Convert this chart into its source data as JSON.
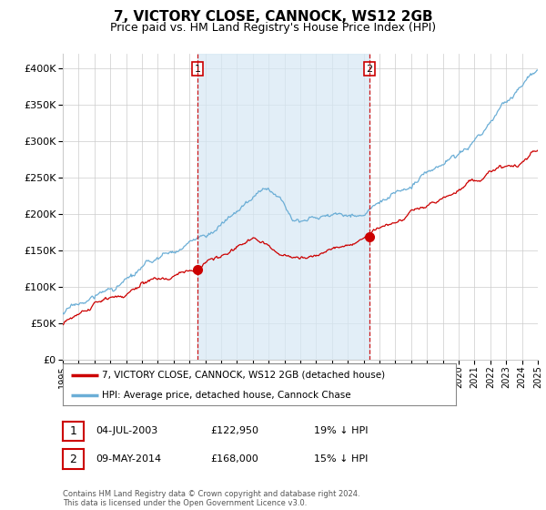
{
  "title": "7, VICTORY CLOSE, CANNOCK, WS12 2GB",
  "subtitle": "Price paid vs. HM Land Registry's House Price Index (HPI)",
  "title_fontsize": 11,
  "subtitle_fontsize": 9,
  "legend_line1": "7, VICTORY CLOSE, CANNOCK, WS12 2GB (detached house)",
  "legend_line2": "HPI: Average price, detached house, Cannock Chase",
  "sale1_date": "04-JUL-2003",
  "sale1_price": "£122,950",
  "sale1_note": "19% ↓ HPI",
  "sale2_date": "09-MAY-2014",
  "sale2_price": "£168,000",
  "sale2_note": "15% ↓ HPI",
  "footer": "Contains HM Land Registry data © Crown copyright and database right 2024.\nThis data is licensed under the Open Government Licence v3.0.",
  "hpi_color": "#6baed6",
  "price_color": "#cc0000",
  "vline_color": "#cc0000",
  "shade_color": "#d6e8f5",
  "grid_color": "#cccccc",
  "ylim": [
    0,
    420000
  ],
  "yticks": [
    0,
    50000,
    100000,
    150000,
    200000,
    250000,
    300000,
    350000,
    400000
  ],
  "sale1_year": 2003.5,
  "sale1_value": 122950,
  "sale2_year": 2014.36,
  "sale2_value": 168000
}
